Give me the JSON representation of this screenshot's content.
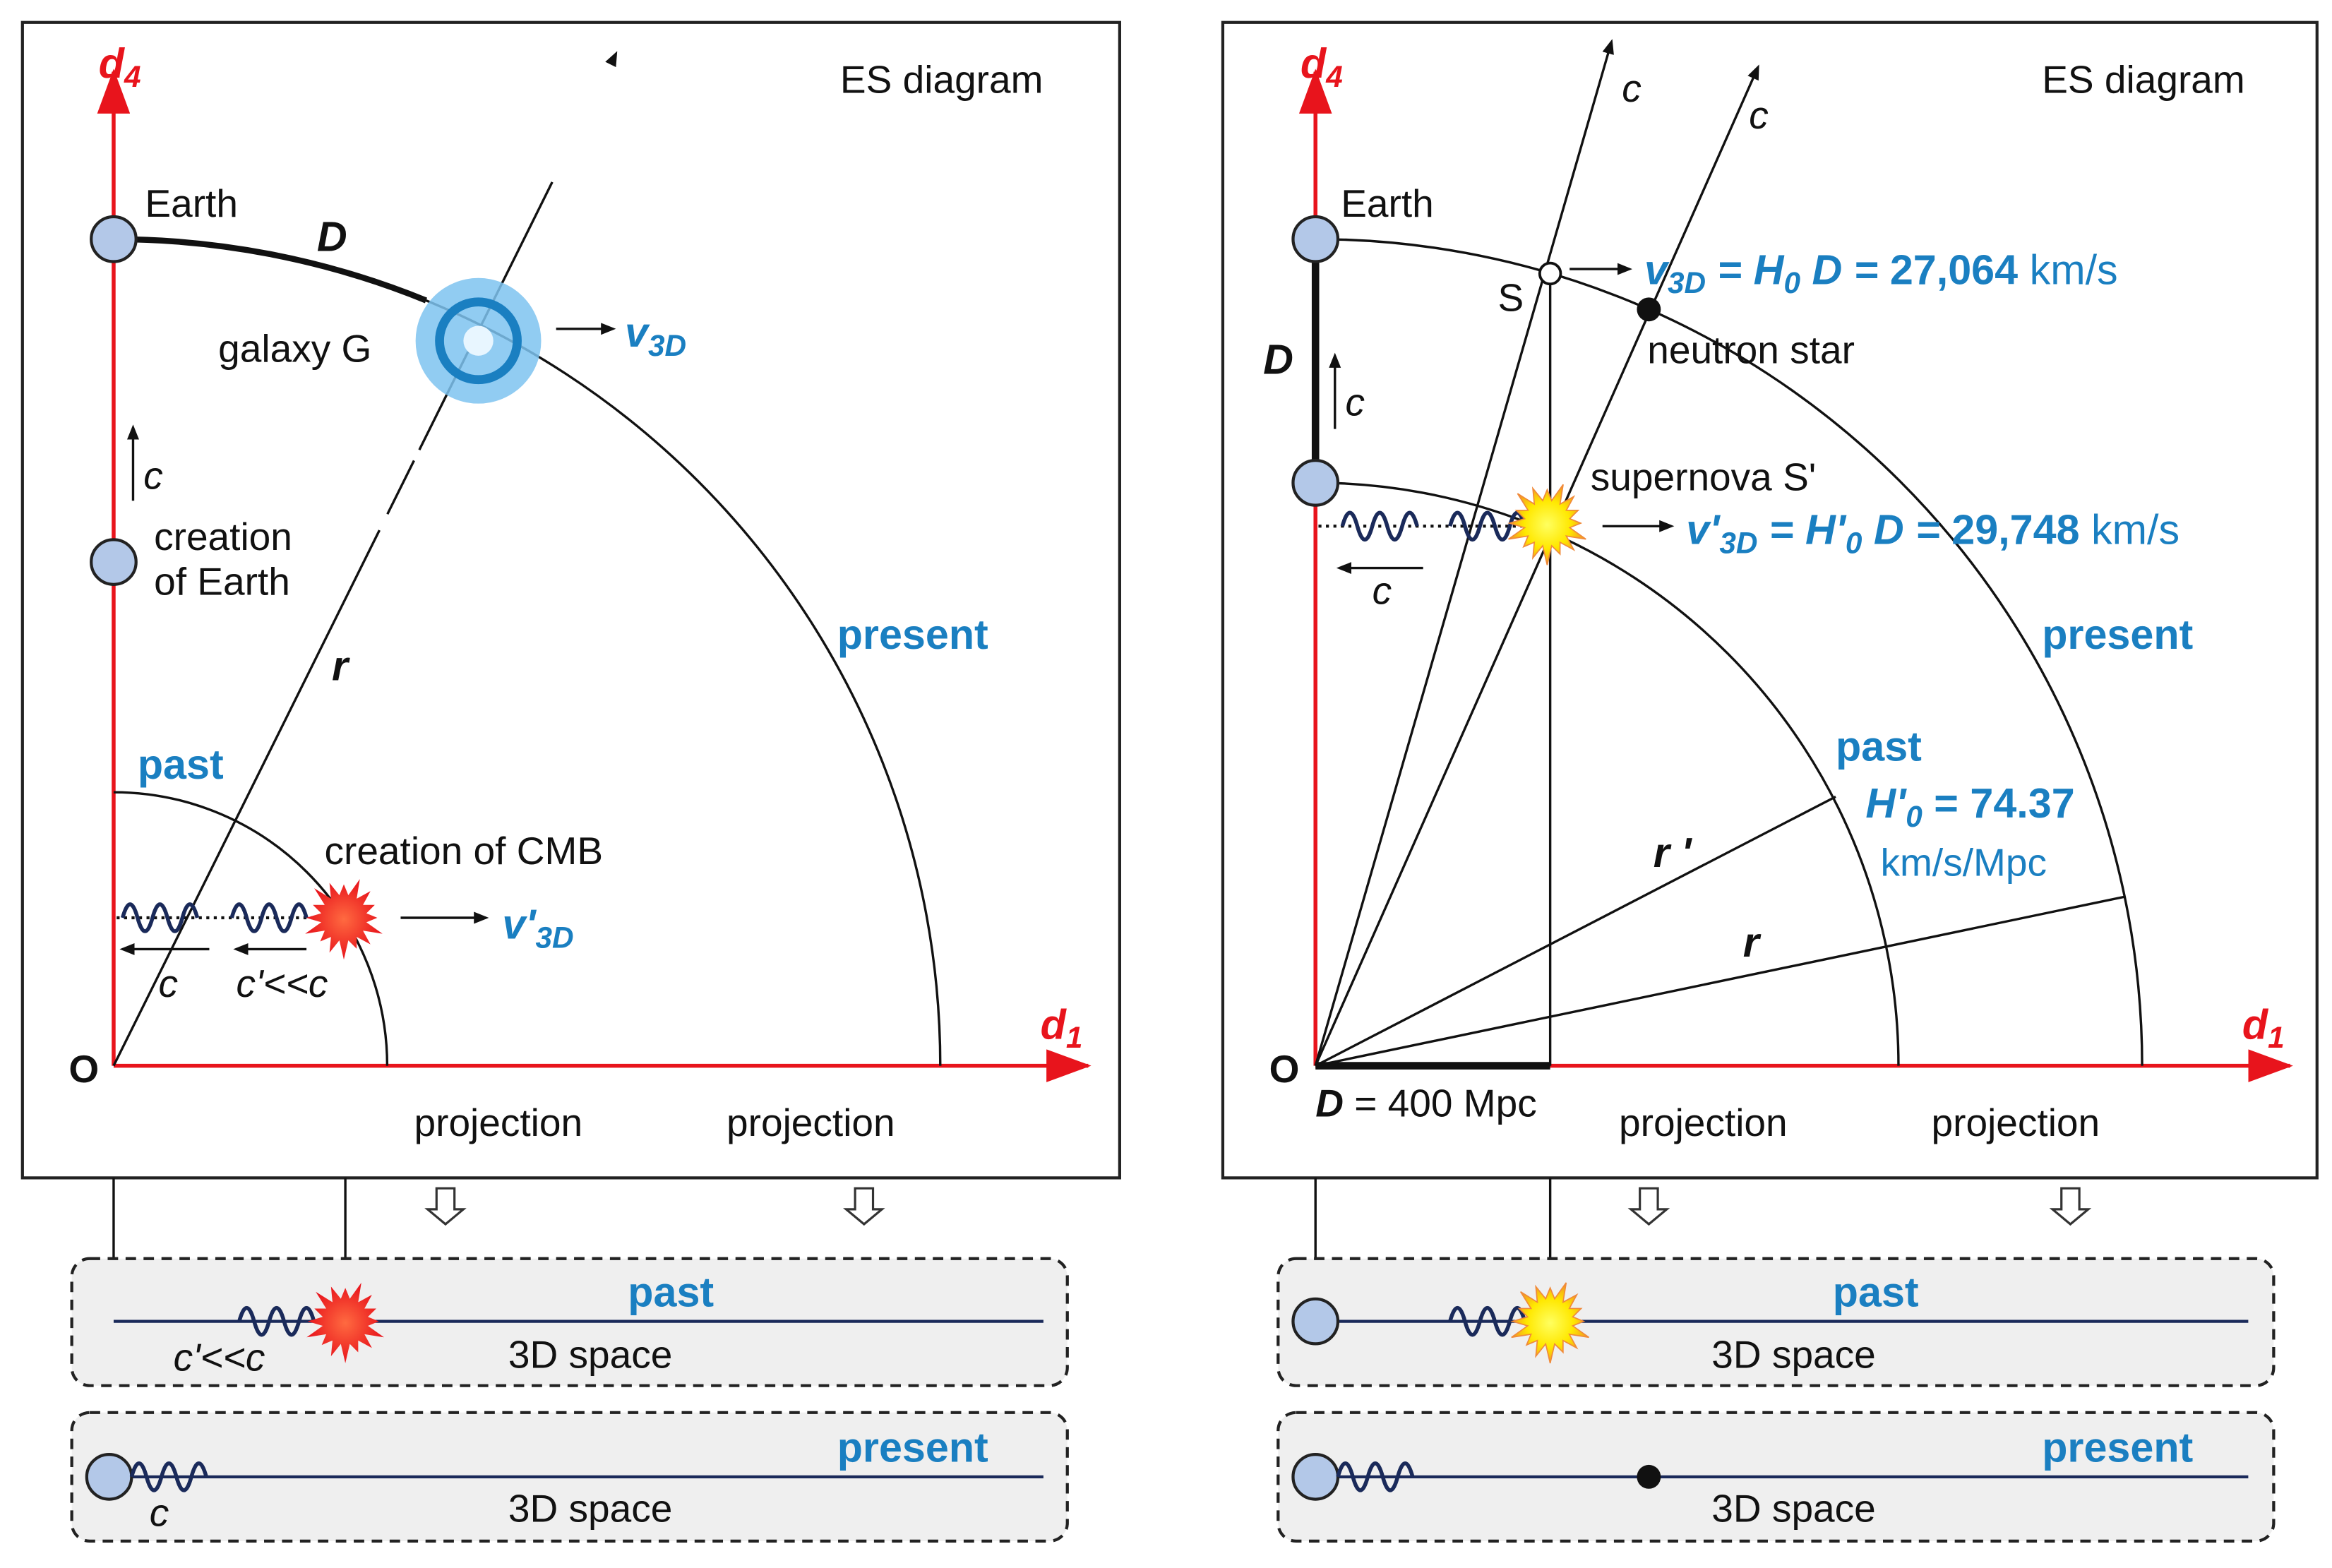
{
  "colors": {
    "accent_blue": "#1a7fc1",
    "axis_red": "#e8141c",
    "wave": "#1a2a5a"
  },
  "left": {
    "title": "ES diagram",
    "axis_y": "d",
    "axis_y_sub": "4",
    "axis_x": "d",
    "axis_x_sub": "1",
    "origin": "O",
    "earth": "Earth",
    "D": "D",
    "galaxy": "galaxy G",
    "v3d": "v",
    "v3d_sub": "3D",
    "c": "c",
    "creation_earth_1": "creation",
    "creation_earth_2": "of Earth",
    "r": "r",
    "present": "present",
    "past": "past",
    "creation_cmb": "creation of CMB",
    "v3d_prime": "v'",
    "v3d_prime_sub": "3D",
    "c_prime": "c'<<c",
    "projection_1": "projection",
    "projection_2": "projection",
    "bottom_past": {
      "label": "past",
      "space": "3D space",
      "c_prime": "c'<<c"
    },
    "bottom_present": {
      "label": "present",
      "space": "3D space",
      "c": "c"
    }
  },
  "right": {
    "title": "ES diagram",
    "axis_y": "d",
    "axis_y_sub": "4",
    "axis_x": "d",
    "axis_x_sub": "1",
    "origin": "O",
    "earth": "Earth",
    "D": "D",
    "c": "c",
    "S": "S",
    "neutron_star": "neutron star",
    "supernova": "supernova S'",
    "eq1": {
      "v": "v",
      "v_sub": "3D",
      "eq": " = ",
      "h": "H",
      "h_sub": "0",
      "d": " D",
      "eq2": " = ",
      "value": "27,064",
      "unit": " km/s"
    },
    "eq2": {
      "v": "v'",
      "v_sub": "3D",
      "eq": " = ",
      "h": "H'",
      "h_sub": "0",
      "d": " D",
      "eq2": " = ",
      "value": "29,748",
      "unit": " km/s"
    },
    "present": "present",
    "past": "past",
    "h0_prime": {
      "h": "H'",
      "h_sub": "0",
      "value": " = 74.37",
      "unit": "km/s/Mpc"
    },
    "r_prime": "r '",
    "r": "r",
    "distance_D": "D",
    "distance_value": " = 400 Mpc",
    "projection_1": "projection",
    "projection_2": "projection",
    "bottom_past": {
      "label": "past",
      "space": "3D space"
    },
    "bottom_present": {
      "label": "present",
      "space": "3D space"
    }
  }
}
